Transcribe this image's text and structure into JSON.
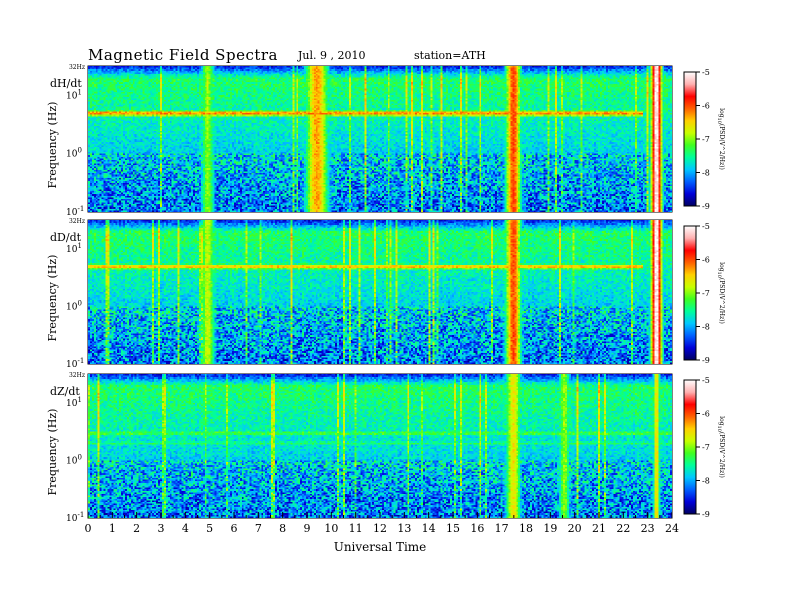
{
  "header": {
    "title": "Magnetic Field Spectra",
    "date": "Jul.  9  , 2010",
    "station": "station=ATH"
  },
  "chart_data": {
    "type": "heatmap",
    "xlabel": "Universal Time",
    "x_ticks": [
      "0",
      "1",
      "2",
      "3",
      "4",
      "5",
      "6",
      "7",
      "8",
      "9",
      "10",
      "11",
      "12",
      "13",
      "14",
      "15",
      "16",
      "17",
      "18",
      "19",
      "20",
      "21",
      "22",
      "23",
      "24"
    ],
    "xlim": [
      0,
      24
    ],
    "y_scale": "log",
    "ylim_hz": [
      0.1,
      32
    ],
    "colorbar": {
      "label": "log10(PSD(V^2/Hz))",
      "label_parts": [
        "log",
        "10",
        "(PSD(V^2/Hz))"
      ],
      "ticks": [
        "-5",
        "-6",
        "-7",
        "-8",
        "-9"
      ],
      "range": [
        -9,
        -5
      ],
      "colors": [
        "#000060",
        "#0000d8",
        "#0060ff",
        "#00c8ff",
        "#00ff9a",
        "#40ff20",
        "#c8ff00",
        "#ffd000",
        "#ff6000",
        "#ff0000",
        "#ffb0b0",
        "#ffffff"
      ]
    },
    "panels": [
      {
        "name": "dH/dt",
        "ylabel": "Frequency (Hz)",
        "y_ticks": [
          {
            "mant": "10",
            "exp": "1",
            "val": 10
          },
          {
            "mant": "10",
            "exp": "0",
            "val": 1
          },
          {
            "mant": "10",
            "exp": "-1",
            "val": 0.1
          }
        ],
        "top_tick": "32Hz",
        "bands": [
          {
            "f": 5.0,
            "level": -6.2,
            "t0": 0,
            "t1": 22.8
          }
        ],
        "bursts": [
          {
            "t": 17.5,
            "w": 0.45,
            "level": -6.0
          },
          {
            "t": 23.4,
            "w": 0.25,
            "level": -5.0
          },
          {
            "t": 4.9,
            "w": 0.5,
            "level": -7.0
          },
          {
            "t": 9.4,
            "w": 0.7,
            "level": -6.3
          }
        ]
      },
      {
        "name": "dD/dt",
        "ylabel": "Frequency (Hz)",
        "y_ticks": [
          {
            "mant": "10",
            "exp": "1",
            "val": 10
          },
          {
            "mant": "10",
            "exp": "0",
            "val": 1
          },
          {
            "mant": "10",
            "exp": "-1",
            "val": 0.1
          }
        ],
        "top_tick": "32Hz",
        "bands": [
          {
            "f": 5.0,
            "level": -6.4,
            "t0": 0,
            "t1": 22.8
          }
        ],
        "bursts": [
          {
            "t": 17.5,
            "w": 0.45,
            "level": -6.0
          },
          {
            "t": 23.4,
            "w": 0.25,
            "level": -5.0
          },
          {
            "t": 4.9,
            "w": 0.5,
            "level": -6.8
          }
        ]
      },
      {
        "name": "dZ/dt",
        "ylabel": "Frequency (Hz)",
        "y_ticks": [
          {
            "mant": "10",
            "exp": "1",
            "val": 10
          },
          {
            "mant": "10",
            "exp": "0",
            "val": 1
          },
          {
            "mant": "10",
            "exp": "-1",
            "val": 0.1
          }
        ],
        "top_tick": "32Hz",
        "bands": [
          {
            "f": 3.0,
            "level": -7.2,
            "t0": 0,
            "t1": 24
          },
          {
            "f": 2.0,
            "level": -7.4,
            "t0": 0,
            "t1": 24
          }
        ],
        "bursts": [
          {
            "t": 17.5,
            "w": 0.5,
            "level": -6.6
          },
          {
            "t": 19.6,
            "w": 0.4,
            "level": -7.0
          },
          {
            "t": 23.4,
            "w": 0.2,
            "level": -6.5
          }
        ]
      }
    ]
  }
}
